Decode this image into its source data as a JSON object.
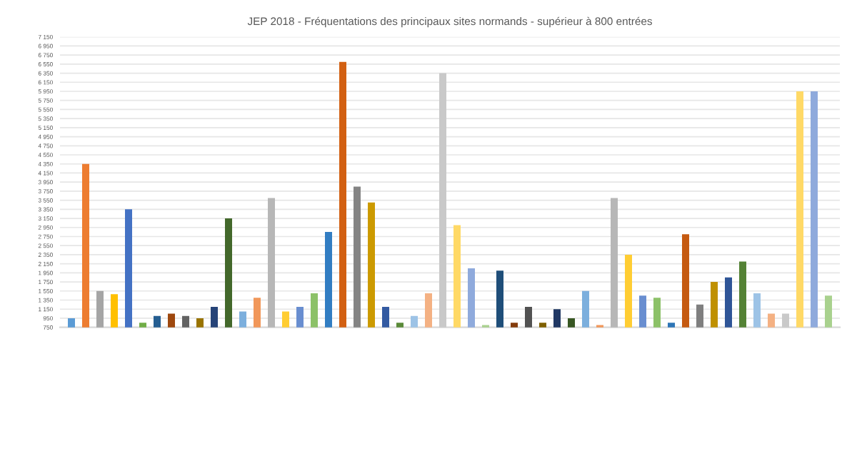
{
  "chart_data": {
    "type": "bar",
    "title": "JEP 2018 - Fréquentations des principaux sites normands - supérieur à 800 entrées",
    "categories": [
      null,
      null,
      null,
      null,
      null,
      null,
      null,
      null,
      null,
      null,
      null,
      null,
      null,
      null,
      null,
      null,
      null,
      null,
      null,
      null,
      null,
      null,
      null,
      null,
      null,
      null,
      null,
      null,
      null,
      null,
      null,
      null,
      null,
      null,
      null,
      null,
      null,
      null,
      null,
      null,
      null,
      null,
      null,
      null,
      null,
      null,
      null,
      null,
      null,
      null,
      null,
      null,
      null,
      null
    ],
    "values": [
      950,
      4350,
      1550,
      1480,
      3350,
      850,
      1000,
      1050,
      1000,
      950,
      1200,
      3150,
      1100,
      1400,
      3600,
      1100,
      1200,
      1500,
      2850,
      6600,
      3850,
      3500,
      1200,
      850,
      1000,
      1500,
      6350,
      3000,
      2050,
      800,
      2000,
      850,
      1200,
      850,
      1150,
      950,
      1550,
      800,
      3600,
      2350,
      1450,
      1400,
      850,
      2800,
      1250,
      1750,
      1850,
      2200,
      1500,
      1050,
      1050,
      5950,
      5950,
      1450
    ],
    "colors": [
      "#5b9bd5",
      "#ed7d31",
      "#a5a5a5",
      "#ffc000",
      "#4472c4",
      "#70ad47",
      "#255e91",
      "#9e480e",
      "#636363",
      "#997300",
      "#264478",
      "#43682b",
      "#7cafdd",
      "#f1975a",
      "#b7b7b7",
      "#ffcd33",
      "#698ed0",
      "#8cc168",
      "#327dc2",
      "#d26012",
      "#848484",
      "#cc9a00",
      "#335aa1",
      "#5a8a39",
      "#9dc3e6",
      "#f4b183",
      "#c9c9c9",
      "#ffd966",
      "#8faadc",
      "#a9d18e",
      "#1f4e79",
      "#843c0c",
      "#525252",
      "#7f6000",
      "#203864",
      "#385723",
      "#7cafdd",
      "#f1975a",
      "#b7b7b7",
      "#ffcd33",
      "#698ed0",
      "#8cc168",
      "#2e75b6",
      "#c55a11",
      "#7f7f7f",
      "#bf9000",
      "#2f5597",
      "#548235",
      "#9dc3e6",
      "#f4b183",
      "#c9c9c9",
      "#ffd966",
      "#8faadc",
      "#a9d18e"
    ],
    "ylim": [
      750,
      7150
    ],
    "yticks": [
      {
        "value": 750,
        "label": "750"
      },
      {
        "value": 950,
        "label": "950"
      },
      {
        "value": 1150,
        "label": "1 150"
      },
      {
        "value": 1350,
        "label": "1 350"
      },
      {
        "value": 1550,
        "label": "1 550"
      },
      {
        "value": 1750,
        "label": "1 750"
      },
      {
        "value": 1950,
        "label": "1 950"
      },
      {
        "value": 2150,
        "label": "2 150"
      },
      {
        "value": 2350,
        "label": "2 350"
      },
      {
        "value": 2550,
        "label": "2 550"
      },
      {
        "value": 2750,
        "label": "2 750"
      },
      {
        "value": 2950,
        "label": "2 950"
      },
      {
        "value": 3150,
        "label": "3 150"
      },
      {
        "value": 3350,
        "label": "3 350"
      },
      {
        "value": 3550,
        "label": "3 550"
      },
      {
        "value": 3750,
        "label": "3 750"
      },
      {
        "value": 3950,
        "label": "3 950"
      },
      {
        "value": 4150,
        "label": "4 150"
      },
      {
        "value": 4350,
        "label": "4 350"
      },
      {
        "value": 4550,
        "label": "4 550"
      },
      {
        "value": 4750,
        "label": "4 750"
      },
      {
        "value": 4950,
        "label": "4 950"
      },
      {
        "value": 5150,
        "label": "5 150"
      },
      {
        "value": 5350,
        "label": "5 350"
      },
      {
        "value": 5550,
        "label": "5 550"
      },
      {
        "value": 5750,
        "label": "5 750"
      },
      {
        "value": 5950,
        "label": "5 950"
      },
      {
        "value": 6150,
        "label": "6 150"
      },
      {
        "value": 6350,
        "label": "6 350"
      },
      {
        "value": 6550,
        "label": "6 550"
      },
      {
        "value": 6750,
        "label": "6 750"
      },
      {
        "value": 6950,
        "label": "6 950"
      },
      {
        "value": 7150,
        "label": "7 150"
      }
    ],
    "grid": "y",
    "legend": false
  }
}
